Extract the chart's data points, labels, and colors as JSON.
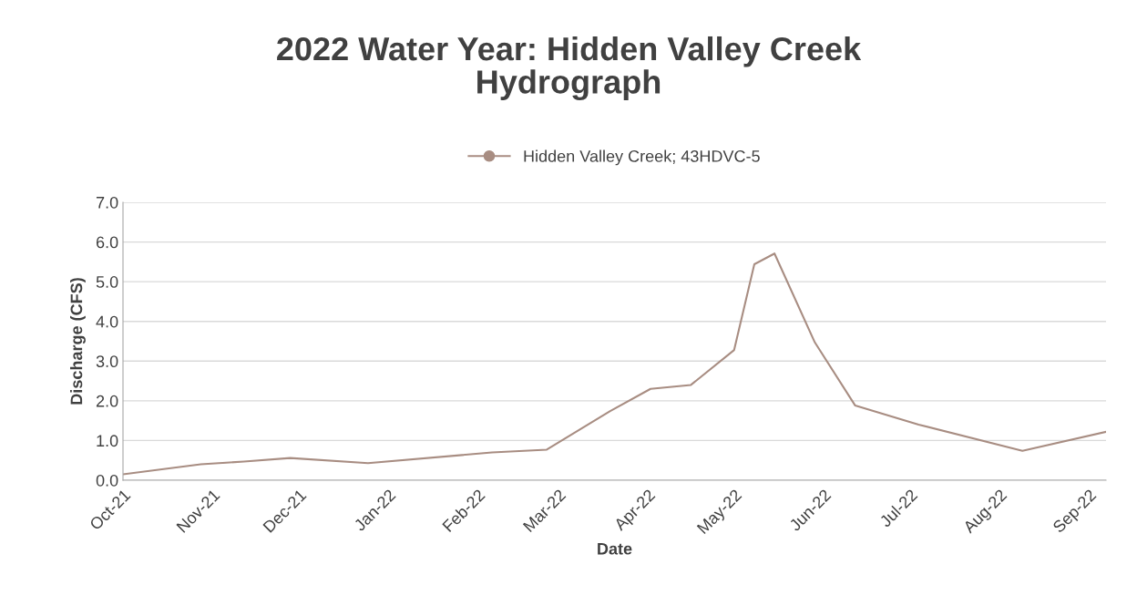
{
  "chart_data": {
    "type": "line",
    "title": "2022 Water Year: Hidden Valley Creek\nHydrograph",
    "xlabel": "Date",
    "ylabel": "Discharge (CFS)",
    "series": [
      {
        "name": "Hidden Valley Creek; 43HDVC-5",
        "color": "#a88d82",
        "x": [
          "2021-10-05",
          "2021-11-01",
          "2021-11-16",
          "2021-12-02",
          "2021-12-29",
          "2022-02-10",
          "2022-03-01",
          "2022-03-23",
          "2022-04-06",
          "2022-04-20",
          "2022-05-05",
          "2022-05-12",
          "2022-05-19",
          "2022-06-02",
          "2022-06-16",
          "2022-07-08",
          "2022-08-13",
          "2022-09-11"
        ],
        "values": [
          0.15,
          0.4,
          0.47,
          0.56,
          0.43,
          0.7,
          0.77,
          1.74,
          2.3,
          2.4,
          3.28,
          5.44,
          5.71,
          3.47,
          1.88,
          1.4,
          0.74,
          1.22
        ]
      }
    ],
    "xlim": [
      "2021-10-05",
      "2022-09-11"
    ],
    "xticks": [
      {
        "value": "2021-10-05",
        "label": "Oct-21"
      },
      {
        "value": "2021-11-05",
        "label": "Nov-21"
      },
      {
        "value": "2021-12-05",
        "label": "Dec-21"
      },
      {
        "value": "2022-01-05",
        "label": "Jan-22"
      },
      {
        "value": "2022-02-05",
        "label": "Feb-22"
      },
      {
        "value": "2022-03-05",
        "label": "Mar-22"
      },
      {
        "value": "2022-04-05",
        "label": "Apr-22"
      },
      {
        "value": "2022-05-05",
        "label": "May-22"
      },
      {
        "value": "2022-06-05",
        "label": "Jun-22"
      },
      {
        "value": "2022-07-05",
        "label": "Jul-22"
      },
      {
        "value": "2022-08-05",
        "label": "Aug-22"
      },
      {
        "value": "2022-09-05",
        "label": "Sep-22"
      }
    ],
    "ylim": [
      0,
      7
    ],
    "yticks": [
      {
        "value": 0,
        "label": "0.0"
      },
      {
        "value": 1,
        "label": "1.0"
      },
      {
        "value": 2,
        "label": "2.0"
      },
      {
        "value": 3,
        "label": "3.0"
      },
      {
        "value": 4,
        "label": "4.0"
      },
      {
        "value": 5,
        "label": "5.0"
      },
      {
        "value": 6,
        "label": "6.0"
      },
      {
        "value": 7,
        "label": "7.0"
      }
    ],
    "grid": "y",
    "legend": "top"
  }
}
